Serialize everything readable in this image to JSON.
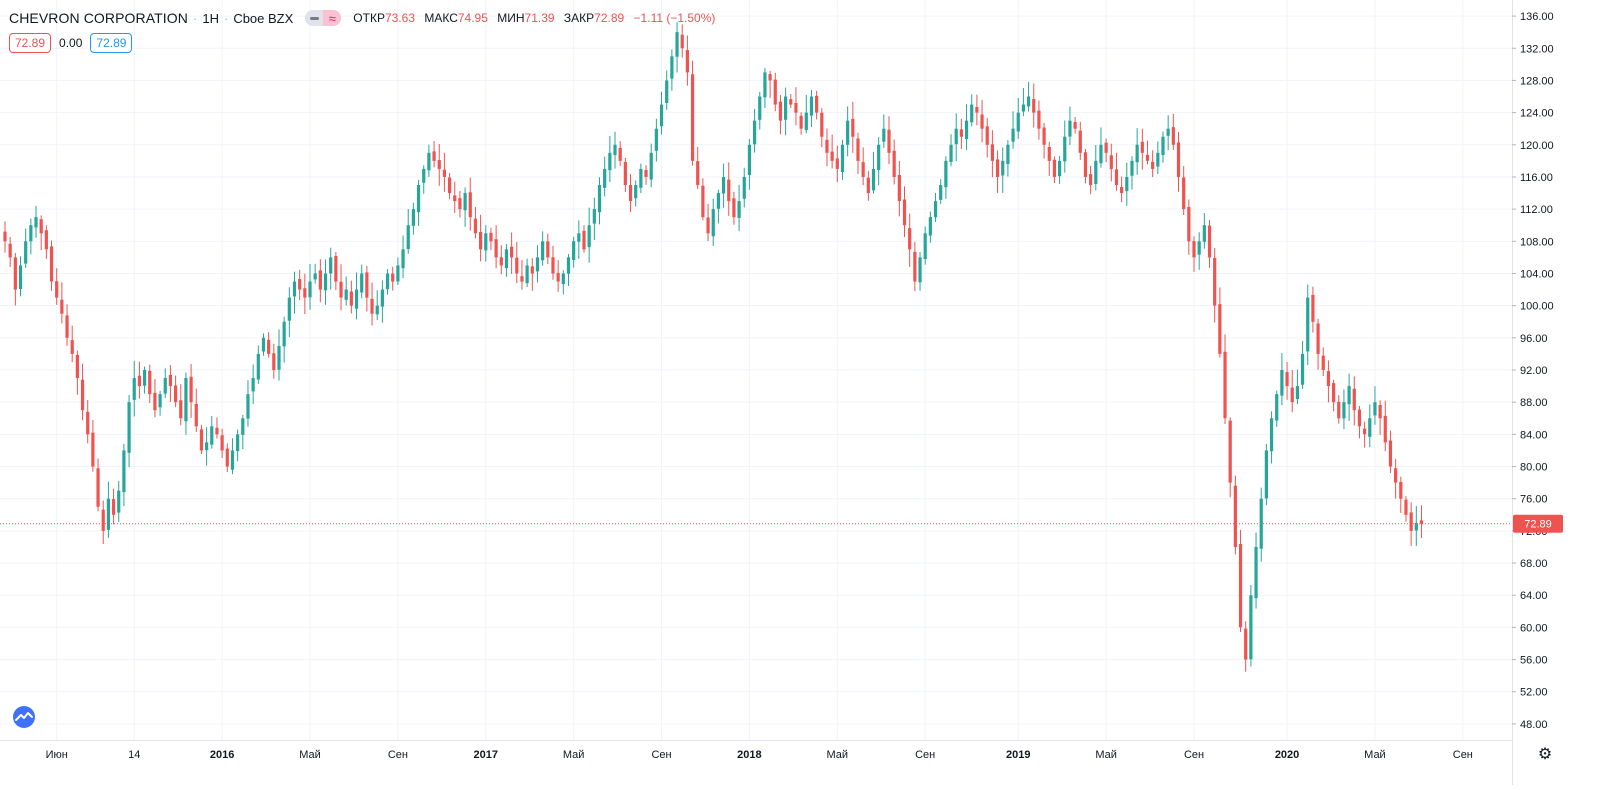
{
  "header": {
    "symbol": "CHEVRON CORPORATION",
    "interval": "1Н",
    "exchange": "Cboe BZX",
    "ohlc": {
      "open_label": "ОТКР",
      "open": "73.63",
      "high_label": "МАКС",
      "high": "74.95",
      "low_label": "МИН",
      "low": "71.39",
      "close_label": "ЗАКР",
      "close": "72.89",
      "change": "−1.11 (−1.50%)"
    },
    "bid": "72.89",
    "spread": "0.00",
    "ask": "72.89"
  },
  "icons": {
    "logo": "tradingview-cloud-icon",
    "settings": "gear-icon"
  },
  "colors": {
    "up": "#26a69a",
    "down": "#ef5350",
    "grid": "#f0f3fa",
    "axis": "#e0e3eb",
    "last_price": "#ef5350"
  },
  "chart_data": {
    "type": "candlestick",
    "title": "CHEVRON CORPORATION · 1Н · Cboe BZX",
    "ylim": [
      46,
      138
    ],
    "y_ticks": [
      48,
      52,
      56,
      60,
      64,
      68,
      72,
      76,
      80,
      84,
      88,
      92,
      96,
      100,
      104,
      108,
      112,
      116,
      120,
      124,
      128,
      132,
      136
    ],
    "x_labels": [
      "Июн",
      "14",
      "2016",
      "Май",
      "Сен",
      "2017",
      "Май",
      "Сен",
      "2018",
      "Май",
      "Сен",
      "2019",
      "Май",
      "Сен",
      "2020",
      "Май",
      "Сен"
    ],
    "x_label_weeks": [
      10,
      25,
      42,
      59,
      76,
      93,
      110,
      127,
      144,
      161,
      178,
      196,
      213,
      230,
      248,
      265,
      282
    ],
    "last_price": 72.89,
    "grid": true,
    "closes": [
      108,
      106,
      102,
      105,
      108,
      110,
      111,
      109,
      107,
      103,
      101,
      99,
      96,
      94,
      91,
      87,
      84,
      80,
      75,
      72,
      76,
      74,
      77,
      82,
      88,
      91,
      90,
      92,
      89,
      87,
      89,
      91,
      90,
      88,
      86,
      91,
      88,
      85,
      82,
      83,
      85,
      84,
      82,
      80,
      82,
      84,
      86,
      89,
      91,
      94,
      96,
      94,
      92,
      95,
      98,
      101,
      103,
      102,
      101,
      103,
      104,
      102,
      104,
      106,
      103,
      101,
      102,
      100,
      102,
      104,
      101,
      99,
      100,
      102,
      104,
      103,
      105,
      107,
      110,
      112,
      115,
      117,
      119,
      118,
      117,
      116,
      114,
      113,
      112,
      114,
      111,
      109,
      107,
      109,
      108,
      106,
      105,
      107,
      106,
      104,
      103,
      105,
      104,
      106,
      108,
      106,
      104,
      103,
      104,
      106,
      108,
      109,
      107,
      110,
      112,
      115,
      117,
      119,
      120,
      118,
      115,
      113,
      115,
      117,
      116,
      119,
      122,
      125,
      128,
      131,
      134,
      132,
      129,
      118,
      115,
      111,
      109,
      112,
      114,
      116,
      113,
      111,
      113,
      116,
      120,
      123,
      126,
      129,
      128,
      125,
      123,
      126,
      125,
      124,
      122,
      124,
      126,
      124,
      121,
      119,
      118,
      117,
      120,
      123,
      121,
      118,
      116,
      114,
      117,
      120,
      122,
      119,
      116,
      113,
      110,
      107,
      103,
      106,
      109,
      111,
      113,
      115,
      118,
      120,
      122,
      121,
      123,
      125,
      124,
      122,
      120,
      118,
      116,
      118,
      120,
      122,
      124,
      125,
      126,
      124,
      122,
      120,
      118,
      116,
      118,
      121,
      123,
      122,
      119,
      116,
      115,
      118,
      120,
      119,
      117,
      115,
      114,
      116,
      118,
      120,
      119,
      118,
      117,
      119,
      121,
      122,
      120,
      116,
      112,
      108,
      106,
      108,
      110,
      106,
      100,
      94,
      86,
      78,
      70,
      60,
      56,
      64,
      70,
      76,
      82,
      86,
      89,
      92,
      90,
      88,
      90,
      94,
      101,
      98,
      94,
      92,
      90,
      88,
      86,
      88,
      90,
      87,
      85,
      84,
      86,
      88,
      86,
      83,
      80,
      78,
      76,
      74,
      72,
      73,
      72.89
    ]
  }
}
